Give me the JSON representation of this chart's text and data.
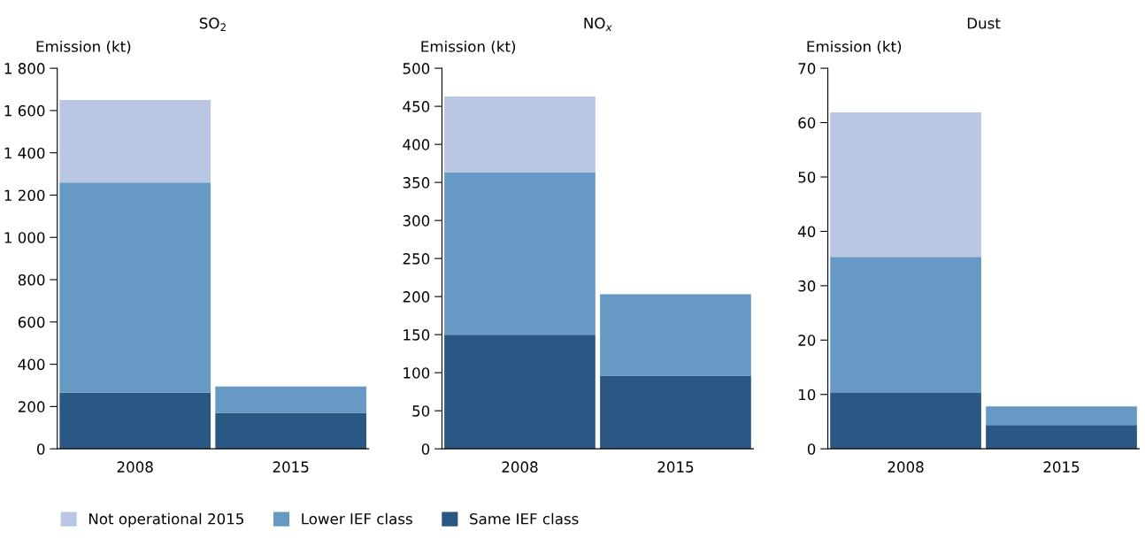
{
  "chart_data": [
    {
      "type": "bar",
      "stacked": true,
      "title": "SO$_{2}$",
      "ylabel": "Emission (kt)",
      "categories": [
        "2008",
        "2015"
      ],
      "legend": "bottom",
      "series": [
        {
          "name": "Same IEF class",
          "color": "#2a5783",
          "values": [
            265,
            170
          ]
        },
        {
          "name": "Lower IEF class",
          "color": "#6699c4",
          "values": [
            995,
            125
          ]
        },
        {
          "name": "Not operational 2015",
          "color": "#b9c7e4",
          "values": [
            390,
            null
          ]
        }
      ],
      "ylim": [
        0,
        1800
      ],
      "yticks": [
        0,
        200,
        400,
        600,
        800,
        {
          "value": 1000,
          "label": "1 000"
        },
        {
          "value": 1200,
          "label": "1 200"
        },
        {
          "value": 1400,
          "label": "1 400"
        },
        {
          "value": 1600,
          "label": "1 600"
        },
        {
          "value": 1800,
          "label": "1 800"
        }
      ]
    },
    {
      "type": "bar",
      "stacked": true,
      "title": "NO$_{x}$",
      "ylabel": "Emission (kt)",
      "categories": [
        "2008",
        "2015"
      ],
      "series": [
        {
          "color": "#2a5783",
          "values": [
            150,
            96
          ]
        },
        {
          "color": "#6699c4",
          "values": [
            213,
            107
          ]
        },
        {
          "color": "#b9c7e4",
          "values": [
            100,
            null
          ]
        }
      ],
      "ylim": [
        0,
        500
      ],
      "yticks": [
        0,
        50,
        100,
        150,
        200,
        250,
        300,
        350,
        400,
        450,
        500
      ]
    },
    {
      "type": "bar",
      "stacked": true,
      "title": "Dust",
      "ylabel": "Emission (kt)",
      "categories": [
        "2008",
        "2015"
      ],
      "series": [
        {
          "color": "#2a5783",
          "values": [
            10.3,
            4.4
          ]
        },
        {
          "color": "#6699c4",
          "values": [
            25.0,
            3.4
          ]
        },
        {
          "color": "#b9c7e4",
          "values": [
            26.6,
            null
          ]
        }
      ],
      "ylim": [
        0,
        70
      ],
      "yticks": [
        0,
        10,
        20,
        30,
        40,
        50,
        60,
        70
      ]
    }
  ]
}
